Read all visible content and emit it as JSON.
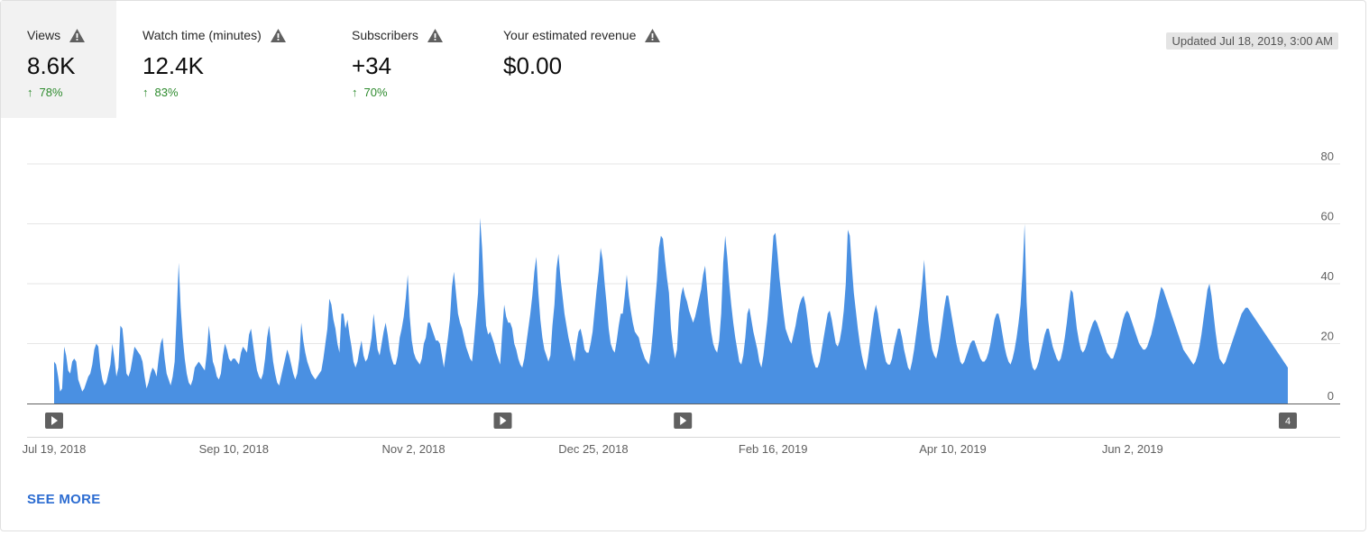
{
  "metrics": [
    {
      "label": "Views",
      "value": "8.6K",
      "change": "78%",
      "selected": true
    },
    {
      "label": "Watch time (minutes)",
      "value": "12.4K",
      "change": "83%",
      "selected": false
    },
    {
      "label": "Subscribers",
      "value": "+34",
      "change": "70%",
      "selected": false
    },
    {
      "label": "Your estimated revenue",
      "value": "$0.00",
      "change": "",
      "selected": false
    }
  ],
  "updated": "Updated Jul 18, 2019, 3:00 AM",
  "see_more": "SEE MORE",
  "colors": {
    "area": "#4a90e2",
    "up": "#2e8b2e",
    "link": "#2c6cd1"
  },
  "chart_data": {
    "type": "area",
    "title": "",
    "xlabel": "",
    "ylabel": "",
    "ylim": [
      0,
      80
    ],
    "yticks": [
      "80",
      "60",
      "40",
      "20",
      "0"
    ],
    "xticks": [
      "Jul 19, 2018",
      "Sep 10, 2018",
      "Nov 2, 2018",
      "Dec 25, 2018",
      "Feb 16, 2019",
      "Apr 10, 2019",
      "Jun 2, 2019"
    ],
    "x_start": "2018-07-19",
    "x_end": "2019-07-17",
    "grid": true,
    "markers": [
      {
        "date": "2018-07-19",
        "label": ""
      },
      {
        "date": "2018-11-28",
        "label": ""
      },
      {
        "date": "2019-01-20",
        "label": ""
      },
      {
        "date": "2019-07-17",
        "label": "4"
      }
    ],
    "series": [
      {
        "values": [
          14,
          13,
          9,
          4,
          5,
          19,
          16,
          11,
          10,
          14,
          15,
          14,
          8,
          6,
          4,
          5,
          7,
          9,
          10,
          13,
          18,
          20,
          19,
          12,
          8,
          6,
          7,
          10,
          13,
          20,
          15,
          9,
          12,
          26,
          25,
          18,
          10,
          9,
          11,
          15,
          19,
          18,
          17,
          16,
          14,
          9,
          5,
          7,
          10,
          12,
          11,
          9,
          15,
          20,
          22,
          15,
          10,
          8,
          6,
          9,
          14,
          30,
          47,
          32,
          22,
          15,
          10,
          7,
          6,
          8,
          12,
          13,
          14,
          13,
          12,
          11,
          17,
          26,
          20,
          14,
          12,
          9,
          8,
          10,
          16,
          20,
          18,
          15,
          14,
          15,
          15,
          14,
          13,
          17,
          19,
          18,
          17,
          23,
          25,
          20,
          15,
          11,
          9,
          8,
          10,
          15,
          22,
          26,
          20,
          14,
          10,
          7,
          6,
          9,
          12,
          15,
          18,
          16,
          13,
          10,
          8,
          10,
          15,
          27,
          21,
          17,
          14,
          12,
          10,
          9,
          8,
          9,
          10,
          11,
          15,
          20,
          25,
          35,
          33,
          28,
          25,
          20,
          17,
          30,
          30,
          25,
          28,
          23,
          19,
          14,
          12,
          14,
          18,
          21,
          16,
          14,
          15,
          18,
          22,
          30,
          24,
          18,
          16,
          20,
          24,
          27,
          23,
          18,
          15,
          13,
          13,
          16,
          22,
          25,
          29,
          35,
          43,
          29,
          21,
          17,
          15,
          14,
          13,
          15,
          20,
          22,
          27,
          27,
          25,
          23,
          21,
          21,
          20,
          16,
          12,
          17,
          22,
          28,
          39,
          44,
          37,
          30,
          27,
          25,
          22,
          19,
          17,
          15,
          14,
          21,
          29,
          37,
          62,
          52,
          37,
          26,
          23,
          24,
          22,
          20,
          17,
          15,
          13,
          24,
          33,
          29,
          27,
          27,
          25,
          20,
          18,
          15,
          13,
          12,
          15,
          20,
          25,
          30,
          36,
          44,
          49,
          37,
          28,
          22,
          18,
          16,
          14,
          16,
          26,
          33,
          45,
          50,
          42,
          36,
          30,
          26,
          22,
          19,
          16,
          14,
          20,
          24,
          25,
          22,
          18,
          17,
          17,
          20,
          24,
          31,
          38,
          44,
          52,
          48,
          40,
          33,
          25,
          20,
          18,
          17,
          21,
          26,
          30,
          30,
          36,
          43,
          36,
          31,
          27,
          24,
          23,
          22,
          19,
          17,
          15,
          14,
          13,
          17,
          24,
          33,
          41,
          52,
          56,
          55,
          48,
          42,
          37,
          25,
          19,
          15,
          18,
          30,
          36,
          39,
          36,
          34,
          31,
          29,
          27,
          29,
          32,
          35,
          38,
          43,
          46,
          38,
          30,
          24,
          20,
          18,
          17,
          21,
          30,
          47,
          56,
          49,
          40,
          33,
          27,
          22,
          18,
          14,
          13,
          16,
          22,
          30,
          32,
          28,
          24,
          21,
          18,
          14,
          12,
          16,
          22,
          28,
          36,
          46,
          56,
          57,
          50,
          42,
          36,
          30,
          25,
          23,
          21,
          20,
          23,
          26,
          30,
          33,
          35,
          36,
          33,
          28,
          22,
          17,
          14,
          12,
          12,
          14,
          18,
          22,
          26,
          30,
          31,
          28,
          24,
          20,
          19,
          21,
          25,
          31,
          40,
          58,
          56,
          46,
          37,
          31,
          25,
          20,
          16,
          13,
          11,
          15,
          20,
          25,
          30,
          33,
          30,
          25,
          21,
          17,
          14,
          13,
          13,
          15,
          19,
          22,
          25,
          25,
          22,
          18,
          15,
          12,
          11,
          14,
          18,
          23,
          28,
          33,
          40,
          48,
          38,
          28,
          22,
          18,
          16,
          15,
          18,
          22,
          27,
          32,
          36,
          36,
          32,
          28,
          24,
          20,
          17,
          14,
          13,
          14,
          16,
          18,
          20,
          21,
          21,
          19,
          17,
          15,
          14,
          14,
          15,
          17,
          20,
          24,
          28,
          30,
          30,
          27,
          23,
          19,
          16,
          14,
          13,
          15,
          18,
          22,
          27,
          33,
          44,
          60,
          34,
          21,
          15,
          12,
          11,
          12,
          14,
          17,
          20,
          23,
          25,
          25,
          22,
          19,
          17,
          15,
          14,
          15,
          18,
          22,
          27,
          33,
          38,
          37,
          31,
          25,
          21,
          18,
          17,
          18,
          20,
          23,
          25,
          27,
          28,
          27,
          25,
          23,
          21,
          19,
          17,
          16,
          15,
          15,
          17,
          19,
          22,
          25,
          28,
          30,
          31,
          30,
          28,
          26,
          24,
          22,
          20,
          19,
          18,
          18,
          19,
          21,
          23,
          26,
          29,
          33,
          36,
          39,
          38,
          36,
          34,
          32,
          30,
          28,
          26,
          24,
          22,
          20,
          18,
          17,
          16,
          15,
          14,
          13,
          14,
          16,
          19,
          23,
          28,
          33,
          38,
          40,
          36,
          30,
          24,
          19,
          15,
          14,
          13,
          14,
          16,
          18,
          20,
          22,
          24,
          26,
          28,
          30,
          31,
          32,
          32,
          31,
          30,
          29,
          28,
          27,
          26,
          25,
          24,
          23,
          22,
          21,
          20,
          19,
          18,
          17,
          16,
          15,
          14,
          13,
          12
        ]
      }
    ]
  }
}
